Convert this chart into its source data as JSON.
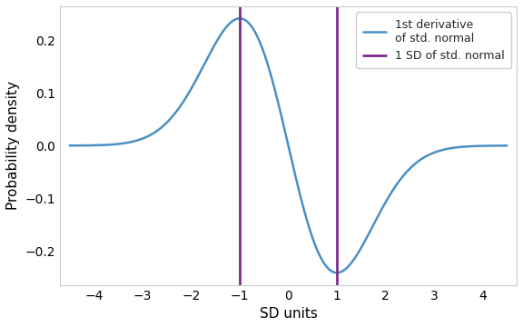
{
  "x_range": [
    -4.5,
    4.5
  ],
  "n_points": 1000,
  "vline_positions": [
    -1,
    1
  ],
  "curve_color": "#4a90c4",
  "vline_color": "#7b2d8b",
  "curve_linewidth": 1.8,
  "vline_linewidth": 2.0,
  "xlabel": "SD units",
  "ylabel": "Probability density",
  "ylim": [
    -0.265,
    0.265
  ],
  "xlim": [
    -4.7,
    4.7
  ],
  "xticks": [
    -4,
    -3,
    -2,
    -1,
    0,
    1,
    2,
    3,
    4
  ],
  "yticks": [
    -0.2,
    -0.1,
    0.0,
    0.1,
    0.2
  ],
  "legend_label_curve": "1st derivative\nof std. normal",
  "legend_label_vline": "1 SD of std. normal",
  "background_color": "#ffffff",
  "label_fontsize": 11,
  "tick_fontsize": 10,
  "legend_fontsize": 9,
  "spine_color": "#cccccc"
}
